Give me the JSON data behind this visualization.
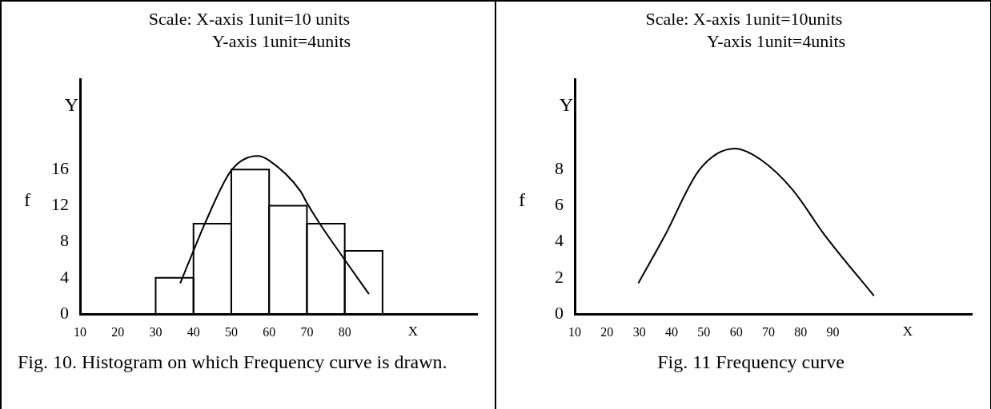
{
  "chart_data": [
    {
      "type": "histogram",
      "title": "Scale: X-axis 1unit=10 units",
      "subtitle": "Y-axis 1unit=4units",
      "xlabel": "X",
      "ylabel": "Y",
      "annotations": [
        "Fig. 10. Histogram on which Frequency curve is drawn.",
        "f"
      ],
      "xlim": [
        10,
        115
      ],
      "xticks": [
        10,
        20,
        30,
        40,
        50,
        60,
        70,
        80
      ],
      "ylim": [
        0,
        26
      ],
      "yticks": [
        0,
        4,
        8,
        12,
        16
      ],
      "series": [
        {
          "type": "histogram",
          "color": "#000000",
          "bins": [
            30,
            40,
            50,
            60,
            70,
            80,
            90
          ],
          "values": [
            4,
            10,
            16,
            12,
            10,
            7
          ]
        },
        {
          "type": "line",
          "color": "#000000",
          "x": [
            36.5,
            40,
            43,
            50,
            56.9,
            60,
            68.3,
            70,
            73.4,
            80,
            86.4
          ],
          "values": [
            3.4,
            7,
            10,
            15.9,
            17.5,
            17,
            13.6,
            12.3,
            10,
            6,
            2.2
          ]
        }
      ]
    },
    {
      "type": "line",
      "title": "Scale: X-axis 1unit=10units",
      "subtitle": "Y-axis 1unit=4units",
      "xlabel": "X",
      "ylabel": "Y",
      "annotations": [
        "Fig. 11 Frequency curve",
        "f"
      ],
      "xlim": [
        10,
        133
      ],
      "xticks": [
        10,
        20,
        30,
        40,
        50,
        60,
        70,
        80,
        90
      ],
      "ylim": [
        0,
        13
      ],
      "yticks": [
        0,
        2,
        4,
        6,
        8
      ],
      "color": "#000000",
      "x": [
        29.7,
        37.8,
        48.7,
        59.6,
        67.5,
        77.4,
        87.3,
        102.7
      ],
      "values": [
        1.7,
        4.3,
        8.0,
        9.16,
        8.56,
        6.9,
        4.4,
        1.0
      ]
    }
  ]
}
